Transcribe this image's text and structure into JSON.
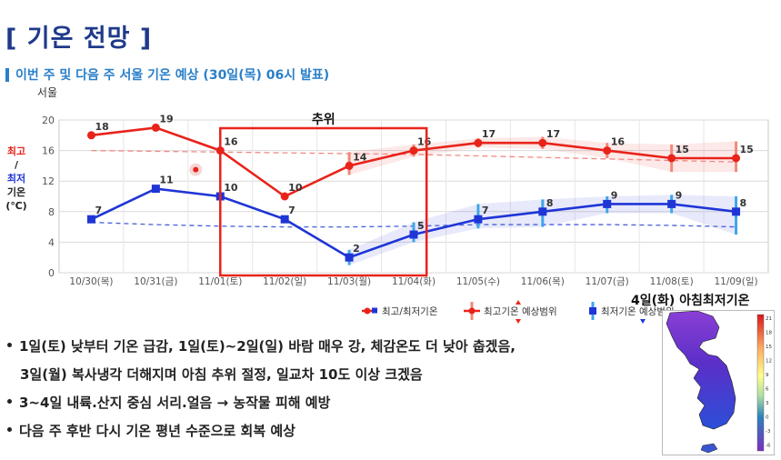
{
  "header": {
    "title": "[ 기온 전망 ]",
    "subtitle": "이번 주 및 다음 주 서울 기온 예상 (30일(목) 06시 발표)"
  },
  "chart_data": {
    "type": "line",
    "region_label": "서울",
    "ylabel_lines": [
      "최고",
      "/",
      "최저",
      "기온",
      "(℃)"
    ],
    "ylim": [
      0,
      20
    ],
    "yticks": [
      0,
      4,
      8,
      12,
      16,
      20
    ],
    "categories": [
      "10/30(목)",
      "10/31(금)",
      "11/01(토)",
      "11/02(일)",
      "11/03(월)",
      "11/04(화)",
      "11/05(수)",
      "11/06(목)",
      "11/07(금)",
      "11/08(토)",
      "11/09(일)"
    ],
    "series": [
      {
        "name": "최고/최저기온",
        "kind": "max",
        "values": [
          18,
          19,
          16,
          10,
          14,
          16,
          17,
          17,
          16,
          15,
          15
        ],
        "color": "#e8231a"
      },
      {
        "name": "최고/최저기온",
        "kind": "min",
        "values": [
          7,
          11,
          10,
          7,
          2,
          5,
          7,
          8,
          9,
          9,
          8
        ],
        "color": "#1f35d6"
      }
    ],
    "normal_max": [
      16,
      15.9,
      15.8,
      15.7,
      15.6,
      15.5,
      15.3,
      15.1,
      14.9,
      14.7,
      14.5
    ],
    "normal_min": [
      6.6,
      6.3,
      6.1,
      6.0,
      6.0,
      6.1,
      6.3,
      6.3,
      6.3,
      6.2,
      6.0
    ],
    "max_range": [
      null,
      null,
      null,
      null,
      [
        12.8,
        15.8
      ],
      [
        15.2,
        16.8
      ],
      [
        16.4,
        17.6
      ],
      [
        16.2,
        17.8
      ],
      [
        15.0,
        17.0
      ],
      [
        13.2,
        16.8
      ],
      [
        13.2,
        17.2
      ]
    ],
    "min_range": [
      null,
      null,
      null,
      null,
      [
        1.0,
        3.0
      ],
      [
        4.0,
        6.6
      ],
      [
        5.8,
        9.0
      ],
      [
        6.0,
        9.6
      ],
      [
        7.8,
        10.0
      ],
      [
        7.8,
        10.2
      ],
      [
        5.0,
        10.0
      ]
    ],
    "highlight": {
      "label": "추위",
      "from_index": 2.5,
      "to_index": 5.7
    },
    "legend": {
      "items": [
        "최고/최저기온",
        "최고기온 예상범위",
        "최저기온 예상범위"
      ],
      "placement": "bottom"
    }
  },
  "bullets": [
    "1일(토) 낮부터 기온 급감, 1일(토)~2일(일) 바람 매우 강, 체감온도 더 낮아 춥겠음,",
    "3일(월) 복사냉각 더해지며 아침 추위 절정, 일교차 10도 이상 크겠음",
    "3~4일 내륙.산지 중심 서리.얼음 → 농작물 피해 예방",
    "다음 주 후반 다시 기온 평년 수준으로 회복 예상"
  ],
  "inset_map": {
    "title": "4일(화) 아침최저기온",
    "scale_labels": [
      "21",
      "18",
      "15",
      "12",
      "9",
      "6",
      "3",
      "0",
      "-3",
      "-6"
    ]
  }
}
